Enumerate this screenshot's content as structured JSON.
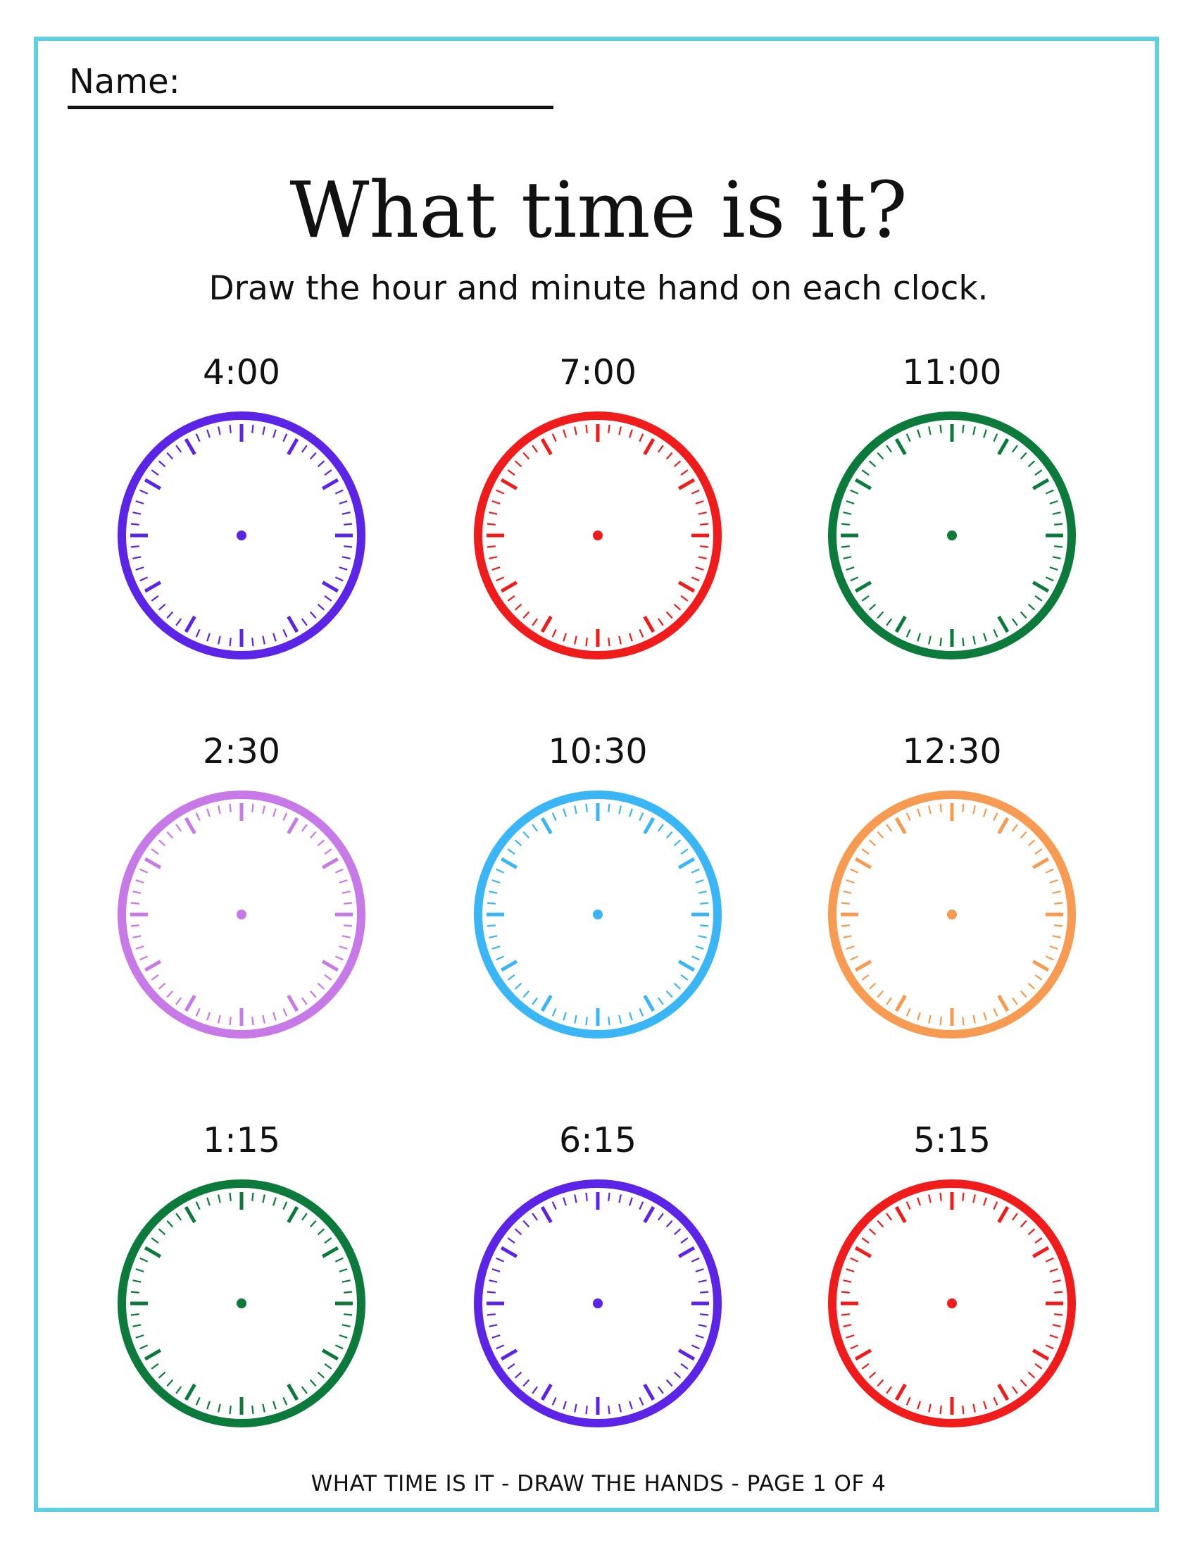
{
  "worksheet": {
    "name_label": "Name:",
    "title": "What time is it?",
    "instructions": "Draw the hour and minute hand on each clock.",
    "footer": "WHAT TIME IS IT - DRAW THE HANDS - PAGE 1 OF 4",
    "border_color": "#5fd0e0"
  },
  "clocks": [
    {
      "time": "4:00",
      "color": "#5b24e6",
      "icon": "clock-face-icon"
    },
    {
      "time": "7:00",
      "color": "#f01c1c",
      "icon": "clock-face-icon"
    },
    {
      "time": "11:00",
      "color": "#0c7a3a",
      "icon": "clock-face-icon"
    },
    {
      "time": "2:30",
      "color": "#c779e8",
      "icon": "clock-face-icon"
    },
    {
      "time": "10:30",
      "color": "#3ab5f5",
      "icon": "clock-face-icon"
    },
    {
      "time": "12:30",
      "color": "#f79a52",
      "icon": "clock-face-icon"
    },
    {
      "time": "1:15",
      "color": "#0c7a3a",
      "icon": "clock-face-icon"
    },
    {
      "time": "6:15",
      "color": "#5b24e6",
      "icon": "clock-face-icon"
    },
    {
      "time": "5:15",
      "color": "#f01c1c",
      "icon": "clock-face-icon"
    }
  ]
}
